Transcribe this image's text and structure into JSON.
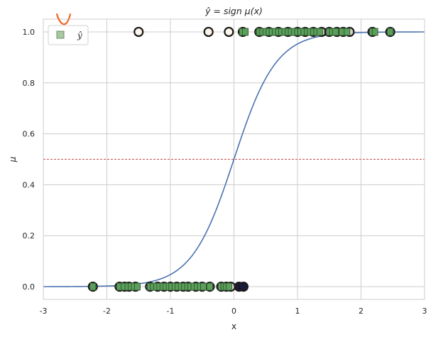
{
  "chart_data": {
    "type": "scatter",
    "title": "ŷ = sign μ(x)",
    "xlabel": "x",
    "ylabel": "μ",
    "xlim": [
      -3,
      3
    ],
    "ylim": [
      -0.05,
      1.05
    ],
    "xticks": [
      -3,
      -2,
      -1,
      0,
      1,
      2,
      3
    ],
    "xtick_labels": [
      "-3",
      "-2",
      "-1",
      "0",
      "1",
      "2",
      "3"
    ],
    "yticks": [
      0.0,
      0.2,
      0.4,
      0.6,
      0.8,
      1.0
    ],
    "ytick_labels": [
      "0.0",
      "0.2",
      "0.4",
      "0.6",
      "0.8",
      "1.0"
    ],
    "grid": true,
    "legend": {
      "position": "top-left",
      "entries": [
        {
          "label": "ŷ",
          "marker": "square",
          "color": "#a8c8a0"
        }
      ]
    },
    "threshold": {
      "y": 0.5,
      "style": "dashed",
      "color": "#c44e52"
    },
    "curve": {
      "type": "sigmoid",
      "scale": 3,
      "color": "#4c72b0"
    },
    "series": [
      {
        "marker": "circle",
        "fill_color": "#fdf4ea",
        "edge_color": "#1a1a1a",
        "x": [
          -1.5,
          -0.4,
          -0.08,
          0.14
        ],
        "y": [
          1,
          1,
          1,
          1
        ]
      },
      {
        "marker": "circle",
        "fill_color": "#1a1a3a",
        "edge_color": "#1a1a1a",
        "x": [
          0.08,
          0.15
        ],
        "y": [
          0,
          0
        ]
      },
      {
        "marker": "circle",
        "fill_color": "#d8d2c4",
        "edge_color": "#1a1a1a",
        "x": [
          -2.22,
          -1.8,
          -1.72,
          -1.65,
          -1.55,
          -1.32,
          -1.2,
          -1.1,
          -1.0,
          -0.9,
          -0.8,
          -0.72,
          -0.6,
          -0.5,
          -0.38,
          -0.2,
          -0.12,
          -0.05,
          0.4,
          0.55,
          0.7,
          0.85,
          1.0,
          1.12,
          1.25,
          1.38,
          1.5,
          1.62,
          1.72,
          1.82,
          2.18,
          2.46
        ],
        "y": [
          0,
          0,
          0,
          0,
          0,
          0,
          0,
          0,
          0,
          0,
          0,
          0,
          0,
          0,
          0,
          0,
          0,
          0,
          1,
          1,
          1,
          1,
          1,
          1,
          1,
          1,
          1,
          1,
          1,
          1,
          1,
          1
        ]
      },
      {
        "name": "ŷ",
        "marker": "square",
        "fill_color": "#5aa05a",
        "edge_color": "#2d4a2d",
        "x": [
          -2.22,
          -1.8,
          -1.73,
          -1.67,
          -1.62,
          -1.57,
          -1.52,
          -1.32,
          -1.27,
          -1.22,
          -1.17,
          -1.12,
          -1.07,
          -1.02,
          -0.98,
          -0.93,
          -0.88,
          -0.83,
          -0.78,
          -0.73,
          -0.68,
          -0.63,
          -0.58,
          -0.53,
          -0.48,
          -0.38,
          -0.2,
          -0.16,
          -0.12,
          -0.08,
          0.13,
          0.18,
          0.4,
          0.45,
          0.5,
          0.55,
          0.6,
          0.65,
          0.7,
          0.75,
          0.8,
          0.85,
          0.9,
          0.95,
          1.0,
          1.05,
          1.1,
          1.15,
          1.2,
          1.25,
          1.3,
          1.35,
          1.5,
          1.55,
          1.6,
          1.7,
          1.78,
          2.18,
          2.22,
          2.46
        ],
        "y": [
          0,
          0,
          0,
          0,
          0,
          0,
          0,
          0,
          0,
          0,
          0,
          0,
          0,
          0,
          0,
          0,
          0,
          0,
          0,
          0,
          0,
          0,
          0,
          0,
          0,
          0,
          0,
          0,
          0,
          0,
          1,
          1,
          1,
          1,
          1,
          1,
          1,
          1,
          1,
          1,
          1,
          1,
          1,
          1,
          1,
          1,
          1,
          1,
          1,
          1,
          1,
          1,
          1,
          1,
          1,
          1,
          1,
          1,
          1,
          1
        ]
      }
    ]
  }
}
